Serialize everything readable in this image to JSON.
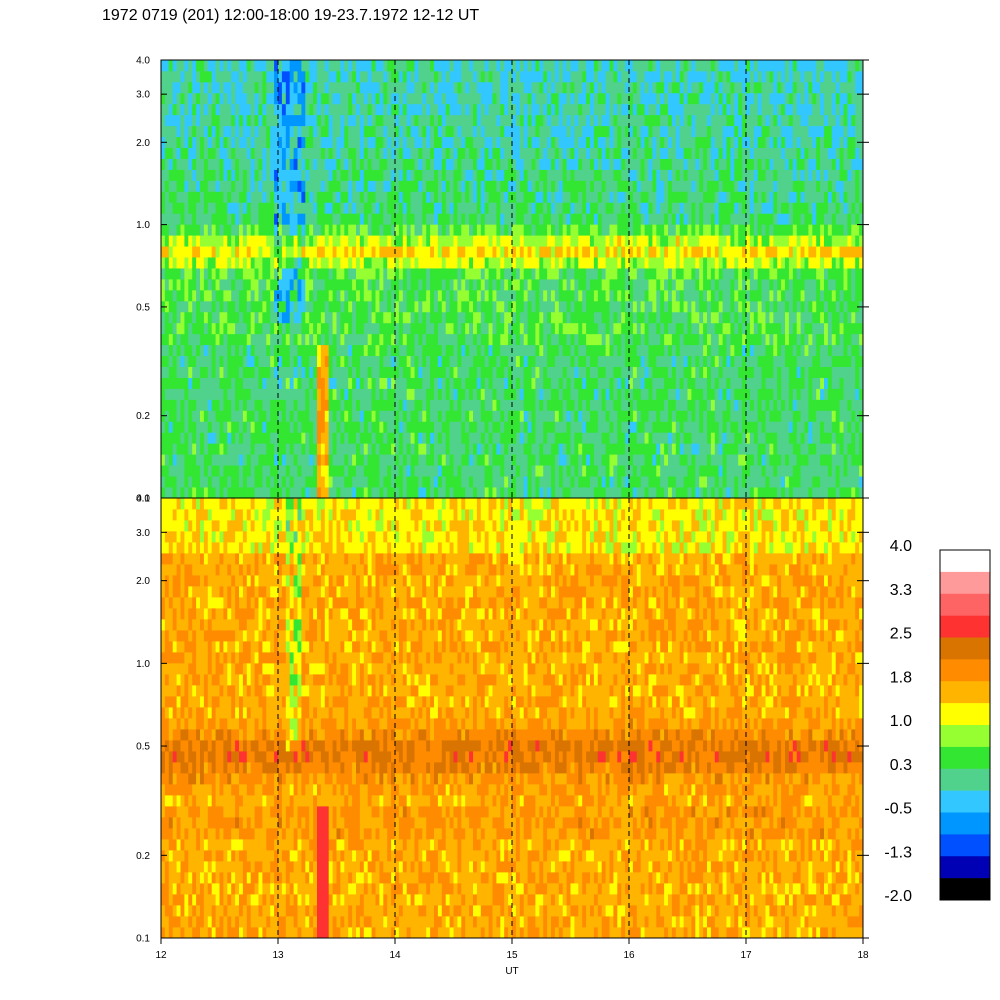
{
  "chart_data": {
    "type": "heatmap",
    "title": "1972 0719 (201) 12:00-18:00 19-23.7.1972  12-12 UT",
    "xlabel": "UT",
    "x_ticks": [
      12,
      13,
      14,
      15,
      16,
      17,
      18
    ],
    "xlim": [
      12,
      18
    ],
    "dashed_gridlines_x": [
      13,
      14,
      15,
      16,
      17
    ],
    "panels": [
      {
        "name": "upper",
        "y_scale": "log",
        "ylim": [
          0.1,
          4.0
        ],
        "y_ticks": [
          "0.1",
          "0.2",
          "0.5",
          "1.0",
          "2.0",
          "3.0",
          "4.0"
        ],
        "dominant_levels": "green/teal background, yellow-orange band near 0.7-0.9, blue streaks around 13.0-13.2 UT above 0.5"
      },
      {
        "name": "lower",
        "y_scale": "log",
        "ylim": [
          0.1,
          4.0
        ],
        "y_ticks": [
          "0.1",
          "0.2",
          "0.5",
          "1.0",
          "2.0",
          "3.0",
          "4.0"
        ],
        "dominant_levels": "orange/yellow background, dark-orange band near 0.4-0.6, red strip at ~13.35-13.45 UT below 0.3, green streaks near 13.1 UT"
      }
    ],
    "colorbar": {
      "labels": [
        "4.0",
        "3.3",
        "2.5",
        "1.8",
        "1.0",
        "0.3",
        "-0.5",
        "-1.3",
        "-2.0"
      ],
      "colors": [
        "#ffffff",
        "#ff9a9a",
        "#ff6464",
        "#ff3232",
        "#d97400",
        "#ff8c00",
        "#ffb400",
        "#ffff00",
        "#96ff32",
        "#32e632",
        "#50d28c",
        "#32c8ff",
        "#0096ff",
        "#0050ff",
        "#0000b4",
        "#000000"
      ]
    }
  }
}
